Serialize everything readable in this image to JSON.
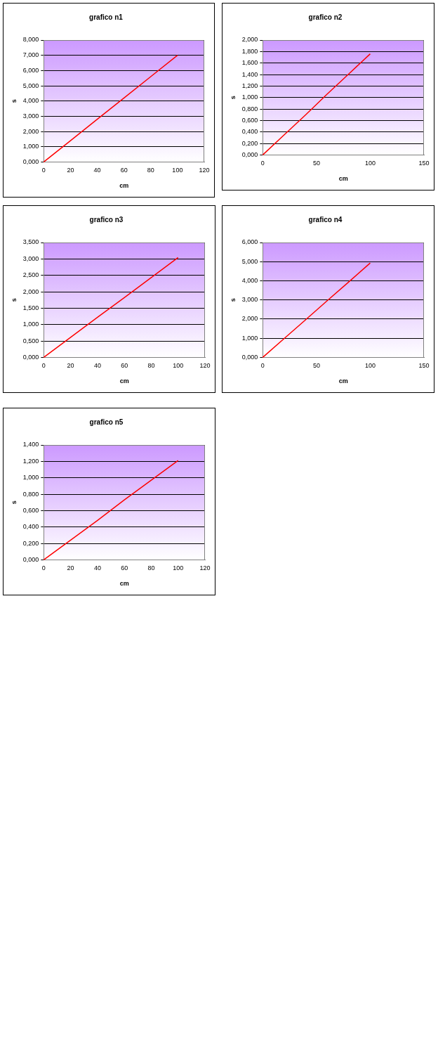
{
  "chart_data": [
    {
      "type": "line",
      "title": "grafico n1",
      "xlabel": "cm",
      "ylabel": "s",
      "x": [
        0,
        20,
        40,
        60,
        80,
        100
      ],
      "series": [
        {
          "color": "#ff0000",
          "values": [
            0,
            1.4,
            2.8,
            4.2,
            5.6,
            7.0
          ]
        }
      ],
      "xlim": [
        0,
        120
      ],
      "xticks": [
        0,
        20,
        40,
        60,
        80,
        100,
        120
      ],
      "ylim": [
        0,
        8
      ],
      "yticks": [
        {
          "value": 0,
          "label": "0,000"
        },
        {
          "value": 1,
          "label": "1,000"
        },
        {
          "value": 2,
          "label": "2,000"
        },
        {
          "value": 3,
          "label": "3,000"
        },
        {
          "value": 4,
          "label": "4,000"
        },
        {
          "value": 5,
          "label": "5,000"
        },
        {
          "value": 6,
          "label": "6,000"
        },
        {
          "value": 7,
          "label": "7,000"
        },
        {
          "value": 8,
          "label": "8,000"
        }
      ],
      "grid": "y",
      "legend": false,
      "marker": "none",
      "line_style": "solid"
    },
    {
      "type": "line",
      "title": "grafico n2",
      "xlabel": "cm",
      "ylabel": "s",
      "x": [
        0,
        20,
        40,
        60,
        80,
        100
      ],
      "series": [
        {
          "color": "#ff0000",
          "values": [
            0,
            0.35,
            0.7,
            1.06,
            1.41,
            1.76
          ]
        }
      ],
      "xlim": [
        0,
        150
      ],
      "xticks": [
        0,
        50,
        100,
        150
      ],
      "ylim": [
        0,
        2
      ],
      "yticks": [
        {
          "value": 0,
          "label": "0,000"
        },
        {
          "value": 0.2,
          "label": "0,200"
        },
        {
          "value": 0.4,
          "label": "0,400"
        },
        {
          "value": 0.6,
          "label": "0,600"
        },
        {
          "value": 0.8,
          "label": "0,800"
        },
        {
          "value": 1,
          "label": "1,000"
        },
        {
          "value": 1.2,
          "label": "1,200"
        },
        {
          "value": 1.4,
          "label": "1,400"
        },
        {
          "value": 1.6,
          "label": "1,600"
        },
        {
          "value": 1.8,
          "label": "1,800"
        },
        {
          "value": 2,
          "label": "2,000"
        }
      ],
      "grid": "y",
      "legend": false,
      "marker": "none",
      "line_style": "solid"
    },
    {
      "type": "line",
      "title": "grafico n3",
      "xlabel": "cm",
      "ylabel": "s",
      "x": [
        0,
        20,
        40,
        60,
        80,
        100
      ],
      "series": [
        {
          "color": "#ff0000",
          "values": [
            0,
            0.61,
            1.22,
            1.82,
            2.43,
            3.04
          ]
        }
      ],
      "xlim": [
        0,
        120
      ],
      "xticks": [
        0,
        20,
        40,
        60,
        80,
        100,
        120
      ],
      "ylim": [
        0,
        3.5
      ],
      "yticks": [
        {
          "value": 0,
          "label": "0,000"
        },
        {
          "value": 0.5,
          "label": "0,500"
        },
        {
          "value": 1,
          "label": "1,000"
        },
        {
          "value": 1.5,
          "label": "1,500"
        },
        {
          "value": 2,
          "label": "2,000"
        },
        {
          "value": 2.5,
          "label": "2,500"
        },
        {
          "value": 3,
          "label": "3,000"
        },
        {
          "value": 3.5,
          "label": "3,500"
        }
      ],
      "grid": "y",
      "legend": false,
      "marker": "none",
      "line_style": "solid"
    },
    {
      "type": "line",
      "title": "grafico n4",
      "xlabel": "cm",
      "ylabel": "s",
      "x": [
        0,
        20,
        40,
        60,
        80,
        100
      ],
      "series": [
        {
          "color": "#ff0000",
          "values": [
            0,
            0.99,
            1.97,
            2.96,
            3.94,
            4.93
          ]
        }
      ],
      "xlim": [
        0,
        150
      ],
      "xticks": [
        0,
        50,
        100,
        150
      ],
      "ylim": [
        0,
        6
      ],
      "yticks": [
        {
          "value": 0,
          "label": "0,000"
        },
        {
          "value": 1,
          "label": "1,000"
        },
        {
          "value": 2,
          "label": "2,000"
        },
        {
          "value": 3,
          "label": "3,000"
        },
        {
          "value": 4,
          "label": "4,000"
        },
        {
          "value": 5,
          "label": "5,000"
        },
        {
          "value": 6,
          "label": "6,000"
        }
      ],
      "grid": "y",
      "legend": false,
      "marker": "none",
      "line_style": "solid"
    },
    {
      "type": "line",
      "title": "grafico n5",
      "xlabel": "cm",
      "ylabel": "s",
      "x": [
        0,
        20,
        40,
        60,
        80,
        100
      ],
      "series": [
        {
          "color": "#ff0000",
          "values": [
            0,
            0.24,
            0.48,
            0.73,
            0.97,
            1.21
          ]
        }
      ],
      "xlim": [
        0,
        120
      ],
      "xticks": [
        0,
        20,
        40,
        60,
        80,
        100,
        120
      ],
      "ylim": [
        0,
        1.4
      ],
      "yticks": [
        {
          "value": 0,
          "label": "0,000"
        },
        {
          "value": 0.2,
          "label": "0,200"
        },
        {
          "value": 0.4,
          "label": "0,400"
        },
        {
          "value": 0.6,
          "label": "0,600"
        },
        {
          "value": 0.8,
          "label": "0,800"
        },
        {
          "value": 1,
          "label": "1,000"
        },
        {
          "value": 1.2,
          "label": "1,200"
        },
        {
          "value": 1.4,
          "label": "1,400"
        }
      ],
      "grid": "y",
      "legend": false,
      "marker": "none",
      "line_style": "solid"
    }
  ]
}
